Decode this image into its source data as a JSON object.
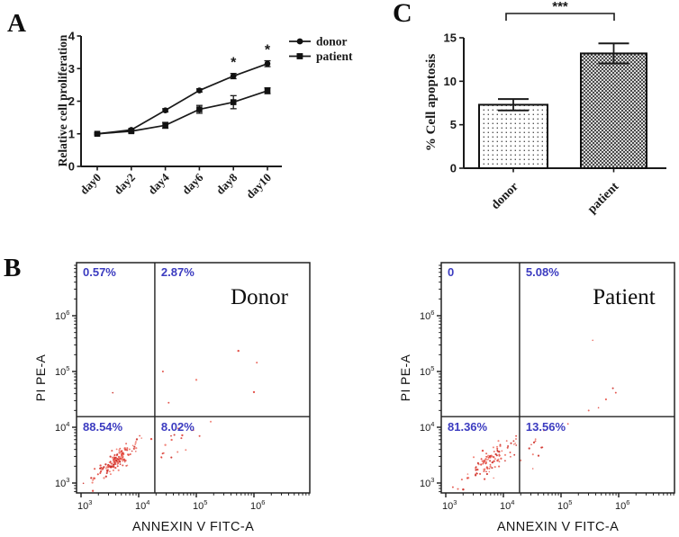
{
  "panel_labels": {
    "a": "A",
    "b": "B",
    "c": "C"
  },
  "colors": {
    "axis": "#1a1a1a",
    "marker": "#111111",
    "quadrant_label": "#3b3bc0",
    "dot_palette": [
      "#e0433a",
      "#e85b50",
      "#cc2f28",
      "#ef7a6e"
    ],
    "bar_checker_dark": "#4a4a4a",
    "bar_checker_light": "#d8d8d8"
  },
  "chart_data": [
    {
      "id": "proliferation",
      "panel": "A",
      "type": "line",
      "title": "",
      "ylabel": "Relative cell proliferation",
      "xlabel": "",
      "categories": [
        "day0",
        "day2",
        "day4",
        "day6",
        "day8",
        "day10"
      ],
      "series": [
        {
          "name": "donor",
          "marker": "circle",
          "values": [
            1.0,
            1.12,
            1.72,
            2.33,
            2.77,
            3.15
          ],
          "errors": [
            0.03,
            0.04,
            0.05,
            0.05,
            0.08,
            0.09
          ]
        },
        {
          "name": "patient",
          "marker": "square",
          "values": [
            1.0,
            1.08,
            1.26,
            1.75,
            1.97,
            2.32
          ],
          "errors": [
            0.03,
            0.05,
            0.09,
            0.12,
            0.2,
            0.09
          ]
        }
      ],
      "ylim": [
        0,
        4
      ],
      "yticks": [
        0,
        1,
        2,
        3,
        4
      ],
      "legend_position": "top-right",
      "annotations": [
        {
          "text": "*",
          "category_index": 4,
          "series": "donor"
        },
        {
          "text": "*",
          "category_index": 5,
          "series": "donor"
        }
      ]
    },
    {
      "id": "apoptosis",
      "panel": "C",
      "type": "bar",
      "title": "",
      "ylabel": "% Cell apoptosis",
      "xlabel": "",
      "categories": [
        "donor",
        "patient"
      ],
      "values": [
        7.3,
        13.2
      ],
      "errors": [
        0.65,
        1.15
      ],
      "ylim": [
        0,
        15
      ],
      "yticks": [
        0,
        5,
        10,
        15
      ],
      "bar_fills": [
        "fine-dots",
        "checkerboard"
      ],
      "significance": {
        "text": "***",
        "between": [
          "donor",
          "patient"
        ]
      }
    },
    {
      "id": "flow_donor",
      "panel": "B",
      "type": "scatter",
      "title": "Donor",
      "xlabel": "ANNEXIN V FITC-A",
      "ylabel": "PI PE-A",
      "xscale": "log",
      "yscale": "log",
      "x_tick_exponents": [
        3,
        4,
        5,
        6
      ],
      "y_tick_exponents": [
        3,
        4,
        5,
        6
      ],
      "xlog_range": [
        2.92,
        6.97
      ],
      "ylog_range": [
        2.82,
        6.93
      ],
      "gate_log": {
        "x": 4.28,
        "y": 4.19
      },
      "quadrant_labels": {
        "upper_left": "0.57%",
        "upper_right": "2.87%",
        "lower_left": "88.54%",
        "lower_right": "8.02%"
      },
      "seed": 1234,
      "clusters": [
        {
          "n": 115,
          "cx": 3.66,
          "cy": 3.44,
          "along": 0.24,
          "across": 0.085,
          "kind": "blob"
        },
        {
          "n": 55,
          "cx": 3.62,
          "cy": 3.4,
          "along": 0.1,
          "across": 0.05,
          "kind": "blob"
        },
        {
          "n": 16,
          "x0": 4.3,
          "dx": 0.75,
          "y0": 3.48,
          "dy": 0.55,
          "jitter": 0.12,
          "kind": "tail"
        }
      ],
      "fixed_points": [
        [
          3.55,
          4.62
        ],
        [
          5.73,
          5.37
        ],
        [
          6.05,
          5.16
        ],
        [
          4.42,
          5.0
        ],
        [
          5.0,
          4.85
        ],
        [
          4.52,
          4.44
        ],
        [
          6.0,
          4.63
        ],
        [
          5.25,
          4.1
        ],
        [
          4.95,
          3.95
        ]
      ]
    },
    {
      "id": "flow_patient",
      "panel": "B",
      "type": "scatter",
      "title": "Patient",
      "xlabel": "ANNEXIN V FITC-A",
      "ylabel": "PI PE-A",
      "xscale": "log",
      "yscale": "log",
      "x_tick_exponents": [
        3,
        4,
        5,
        6
      ],
      "y_tick_exponents": [
        3,
        4,
        5,
        6
      ],
      "xlog_range": [
        2.92,
        6.97
      ],
      "ylog_range": [
        2.82,
        6.93
      ],
      "gate_log": {
        "x": 4.28,
        "y": 4.19
      },
      "quadrant_labels": {
        "upper_left": "0",
        "upper_right": "5.08%",
        "lower_left": "81.36%",
        "lower_right": "13.56%"
      },
      "seed": 999,
      "clusters": [
        {
          "n": 80,
          "cx": 3.74,
          "cy": 3.36,
          "along": 0.3,
          "across": 0.12,
          "kind": "blob"
        },
        {
          "n": 25,
          "cx": 3.8,
          "cy": 3.48,
          "along": 0.12,
          "across": 0.06,
          "kind": "blob"
        },
        {
          "n": 12,
          "x0": 4.3,
          "dx": 0.55,
          "y0": 3.35,
          "dy": 0.6,
          "jitter": 0.13,
          "kind": "tail"
        }
      ],
      "fixed_points": [
        [
          5.55,
          5.56
        ],
        [
          5.9,
          4.7
        ],
        [
          5.78,
          4.5
        ],
        [
          5.95,
          4.62
        ],
        [
          5.65,
          4.35
        ],
        [
          5.48,
          4.3
        ],
        [
          5.12,
          4.06
        ]
      ]
    }
  ]
}
